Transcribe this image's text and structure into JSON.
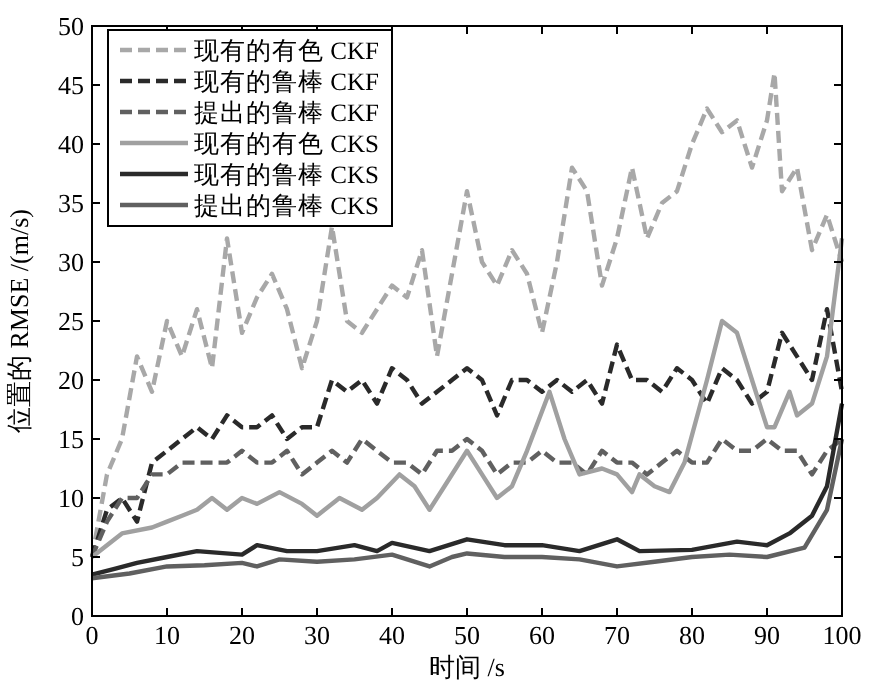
{
  "chart_data": {
    "type": "line",
    "xlabel": "时间 /s",
    "ylabel": "位置的 RMSE /(m/s)",
    "xlim": [
      0,
      100
    ],
    "ylim": [
      0,
      50
    ],
    "xticks": [
      0,
      10,
      20,
      30,
      40,
      50,
      60,
      70,
      80,
      90,
      100
    ],
    "yticks": [
      0,
      5,
      10,
      15,
      20,
      25,
      30,
      35,
      40,
      45,
      50
    ],
    "grid": false,
    "legend": "top left",
    "series": [
      {
        "name": "现有的有色 CKF",
        "color": "#a8a8a8",
        "line_style": "dashed",
        "x": [
          0,
          2,
          4,
          6,
          8,
          10,
          12,
          14,
          16,
          18,
          20,
          22,
          24,
          26,
          28,
          30,
          32,
          34,
          36,
          38,
          40,
          42,
          44,
          46,
          48,
          50,
          52,
          54,
          56,
          58,
          60,
          62,
          64,
          66,
          68,
          70,
          72,
          74,
          76,
          78,
          80,
          82,
          84,
          86,
          88,
          90,
          91,
          92,
          94,
          96,
          98,
          100
        ],
        "values": [
          5,
          12,
          15,
          22,
          19,
          25,
          22,
          26,
          21,
          32,
          24,
          27,
          29,
          26,
          21,
          25,
          33,
          25,
          24,
          26,
          28,
          27,
          31,
          22,
          29,
          36,
          30,
          28,
          31,
          29,
          24,
          30,
          38,
          36,
          28,
          32,
          38,
          32,
          35,
          36,
          40,
          43,
          41,
          42,
          38,
          42,
          46,
          36,
          38,
          31,
          34,
          30
        ]
      },
      {
        "name": "现有的鲁棒 CKF",
        "color": "#2a2a2a",
        "line_style": "dashed",
        "x": [
          0,
          2,
          4,
          6,
          8,
          10,
          12,
          14,
          16,
          18,
          20,
          22,
          24,
          26,
          28,
          30,
          32,
          34,
          36,
          38,
          40,
          42,
          44,
          46,
          48,
          50,
          52,
          54,
          56,
          58,
          60,
          62,
          64,
          66,
          68,
          70,
          72,
          74,
          76,
          78,
          80,
          82,
          84,
          86,
          88,
          90,
          92,
          94,
          96,
          98,
          100
        ],
        "values": [
          5,
          9,
          10,
          8,
          13,
          14,
          15,
          16,
          15,
          17,
          16,
          16,
          17,
          15,
          16,
          16,
          20,
          19,
          20,
          18,
          21,
          20,
          18,
          19,
          20,
          21,
          20,
          17,
          20,
          20,
          19,
          20,
          19,
          20,
          18,
          23,
          20,
          20,
          19,
          21,
          20,
          18,
          21,
          20,
          18,
          19,
          24,
          22,
          20,
          26,
          19
        ]
      },
      {
        "name": "提出的鲁棒 CKF",
        "color": "#606060",
        "line_style": "dashed",
        "x": [
          0,
          2,
          4,
          6,
          8,
          10,
          12,
          14,
          16,
          18,
          20,
          22,
          24,
          26,
          28,
          30,
          32,
          34,
          36,
          38,
          40,
          42,
          44,
          46,
          48,
          50,
          52,
          54,
          56,
          58,
          60,
          62,
          64,
          66,
          68,
          70,
          72,
          74,
          76,
          78,
          80,
          82,
          84,
          86,
          88,
          90,
          92,
          94,
          96,
          98,
          100
        ],
        "values": [
          5,
          8,
          10,
          10,
          12,
          12,
          13,
          13,
          13,
          13,
          14,
          13,
          13,
          14,
          12,
          13,
          14,
          13,
          15,
          14,
          13,
          13,
          12,
          14,
          14,
          15,
          14,
          12,
          13,
          13,
          14,
          13,
          13,
          12,
          14,
          13,
          13,
          12,
          13,
          14,
          13,
          13,
          15,
          14,
          14,
          15,
          14,
          14,
          12,
          14,
          15
        ]
      },
      {
        "name": "现有的有色 CKS",
        "color": "#a0a0a0",
        "line_style": "solid",
        "x": [
          0,
          4,
          8,
          10,
          12,
          14,
          16,
          18,
          20,
          22,
          25,
          28,
          30,
          33,
          36,
          38,
          41,
          43,
          45,
          47,
          50,
          52,
          54,
          56,
          58,
          61,
          63,
          65,
          68,
          70,
          72,
          73,
          75,
          77,
          79,
          82,
          84,
          86,
          88,
          90,
          91,
          93,
          94,
          96,
          98,
          100
        ],
        "values": [
          5,
          7,
          7.5,
          8,
          8.5,
          9,
          10,
          9,
          10,
          9.5,
          10.5,
          9.5,
          8.5,
          10,
          9,
          10,
          12,
          11,
          9,
          11,
          14,
          12,
          10,
          11,
          14,
          19,
          15,
          12,
          12.5,
          12,
          10.5,
          12,
          11,
          10.5,
          13,
          20,
          25,
          24,
          20,
          16,
          16,
          19,
          17,
          18,
          22,
          32
        ]
      },
      {
        "name": "现有的鲁棒 CKS",
        "color": "#2a2a2a",
        "line_style": "solid",
        "x": [
          0,
          3,
          6,
          10,
          14,
          20,
          22,
          26,
          30,
          35,
          38,
          40,
          45,
          50,
          55,
          60,
          65,
          70,
          73,
          80,
          86,
          90,
          93,
          96,
          98,
          100
        ],
        "values": [
          3.5,
          4,
          4.5,
          5,
          5.5,
          5.2,
          6,
          5.5,
          5.5,
          6,
          5.5,
          6.2,
          5.5,
          6.5,
          6,
          6,
          5.5,
          6.5,
          5.5,
          5.6,
          6.3,
          6,
          7,
          8.5,
          11,
          18
        ]
      },
      {
        "name": "提出的鲁棒 CKS",
        "color": "#606060",
        "line_style": "solid",
        "x": [
          0,
          5,
          10,
          15,
          20,
          22,
          25,
          30,
          35,
          40,
          45,
          48,
          50,
          55,
          60,
          65,
          70,
          75,
          80,
          85,
          90,
          95,
          98,
          100
        ],
        "values": [
          3.2,
          3.6,
          4.2,
          4.3,
          4.5,
          4.2,
          4.8,
          4.6,
          4.8,
          5.2,
          4.2,
          5,
          5.3,
          5,
          5,
          4.8,
          4.2,
          4.6,
          5,
          5.2,
          5,
          5.8,
          9,
          15
        ]
      }
    ]
  }
}
